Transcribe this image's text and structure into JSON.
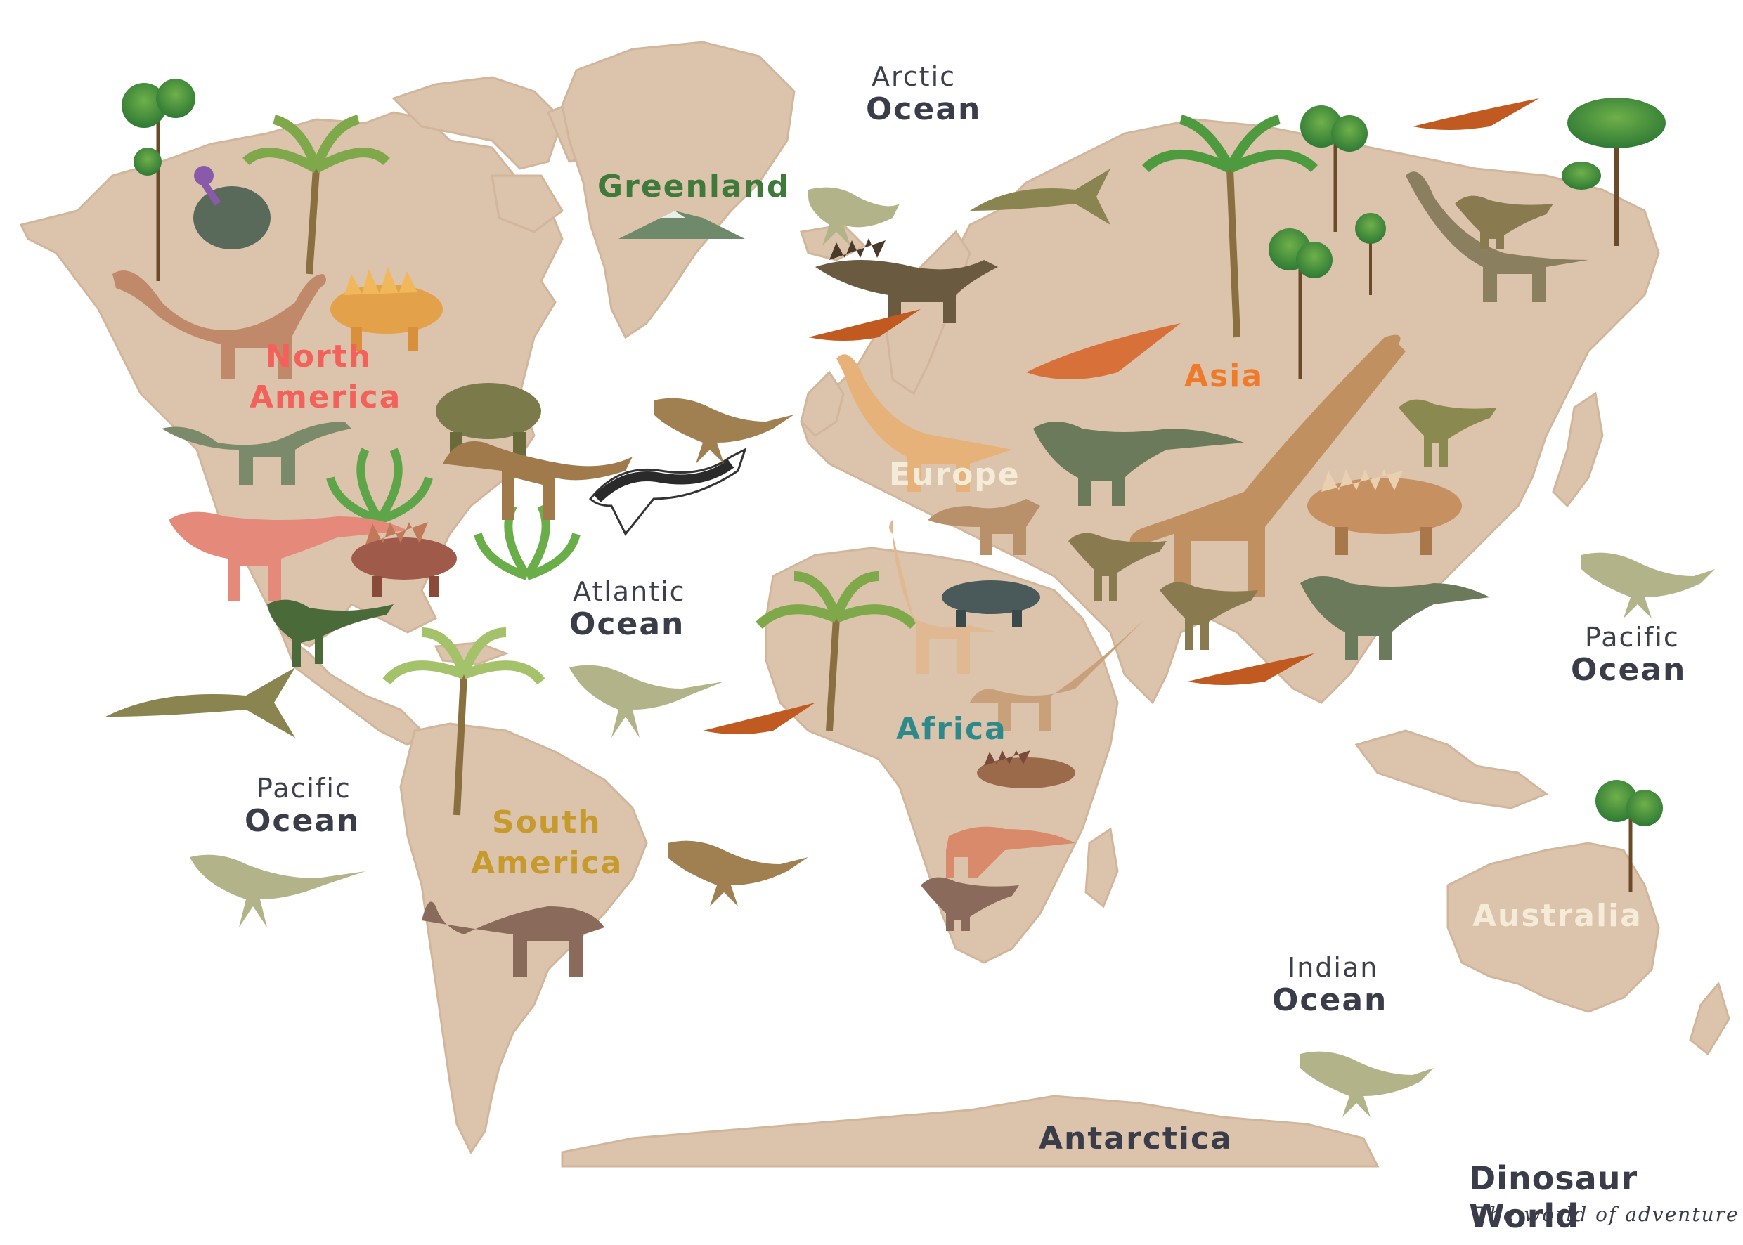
{
  "map": {
    "oceans": {
      "arctic": {
        "line1": "Arctic",
        "line2": "Ocean"
      },
      "atlantic": {
        "line1": "Atlantic",
        "line2": "Ocean"
      },
      "pacific_east": {
        "line1": "Pacific",
        "line2": "Ocean"
      },
      "pacific_west": {
        "line1": "Pacific",
        "line2": "Ocean"
      },
      "indian": {
        "line1": "Indian",
        "line2": "Ocean"
      }
    },
    "continents": {
      "north_america": {
        "line1": "North",
        "line2": "America",
        "color": "#f2625a"
      },
      "south_america": {
        "line1": "South",
        "line2": "America",
        "color": "#c79a2e"
      },
      "europe": {
        "label": "Europe",
        "color": "#f4ecd8"
      },
      "africa": {
        "label": "Africa",
        "color": "#2e8a8a"
      },
      "asia": {
        "label": "Asia",
        "color": "#ef7a2a"
      },
      "australia": {
        "label": "Australia",
        "color": "#f4ecd8"
      },
      "antarctica": {
        "label": "Antarctica",
        "color": "#3a3c4a"
      },
      "greenland": {
        "label": "Greenland",
        "color": "#3f7a3a"
      }
    },
    "land_color": "#dcc3ab"
  },
  "brand": {
    "title": "Dinosaur World",
    "subtitle": "The world of adventure"
  }
}
